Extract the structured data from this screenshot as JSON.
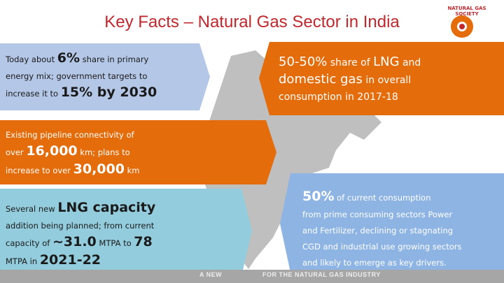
{
  "title": "Key Facts – Natural Gas Sector in India",
  "logo": {
    "text": "NATURAL GAS SOCIETY"
  },
  "boxes": [
    {
      "lines": [
        [
          "Today about ",
          "6%",
          " share in primary"
        ],
        [
          "energy mix; government targets to"
        ],
        [
          "increase it to ",
          "15% by 2030"
        ]
      ]
    },
    {
      "lines": [
        [
          "50-50%",
          " share of ",
          "LNG",
          " and"
        ],
        [
          "domestic gas",
          " in overall"
        ],
        [
          "consumption in 2017-18"
        ]
      ]
    },
    {
      "lines": [
        [
          "Existing pipeline connectivity of"
        ],
        [
          "over ",
          "16,000",
          " km; plans to"
        ],
        [
          "increase to over ",
          "30,000",
          " km"
        ]
      ]
    },
    {
      "lines": [
        [
          "Several new ",
          "LNG capacity"
        ],
        [
          "addition being planned; from current"
        ],
        [
          "capacity of ",
          "~31.0",
          " MTPA to ",
          "78"
        ],
        [
          "MTPA in ",
          "2021-22"
        ]
      ]
    },
    {
      "lines": [
        [
          "50%",
          " of current consumption"
        ],
        [
          "from prime consuming sectors Power"
        ],
        [
          "and Fertilizer, declining or stagnating"
        ],
        [
          "CGD and industrial use growing sectors"
        ],
        [
          "and likely to emerge as key drivers."
        ]
      ]
    }
  ],
  "footer": [
    "A NEW",
    "FOR THE NATURAL GAS INDUSTRY"
  ]
}
